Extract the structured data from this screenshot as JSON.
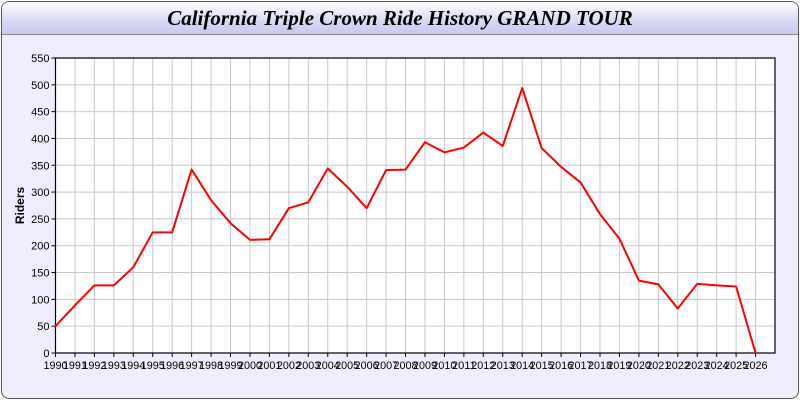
{
  "chart_data": {
    "type": "line",
    "title": "California Triple Crown Ride History GRAND TOUR",
    "xlabel": "",
    "ylabel": "Riders",
    "xlim": [
      1990,
      2027
    ],
    "ylim": [
      0,
      550
    ],
    "yticks": [
      0,
      50,
      100,
      150,
      200,
      250,
      300,
      350,
      400,
      450,
      500,
      550
    ],
    "grid": true,
    "line_color": "#ff0000",
    "x": [
      1990,
      1991,
      1992,
      1993,
      1994,
      1995,
      1996,
      1997,
      1998,
      1999,
      2000,
      2001,
      2002,
      2003,
      2004,
      2005,
      2006,
      2007,
      2008,
      2009,
      2010,
      2011,
      2012,
      2013,
      2014,
      2015,
      2016,
      2017,
      2018,
      2019,
      2020,
      2021,
      2022,
      2023,
      2024,
      2025,
      2026
    ],
    "series": [
      {
        "values": [
          50,
          89,
          126,
          126,
          160,
          225,
          225,
          342,
          285,
          242,
          211,
          212,
          270,
          281,
          344,
          310,
          270,
          341,
          342,
          393,
          374,
          383,
          411,
          386,
          494,
          382,
          347,
          318,
          259,
          213,
          135,
          128,
          83,
          129,
          126,
          124,
          0
        ]
      }
    ]
  }
}
